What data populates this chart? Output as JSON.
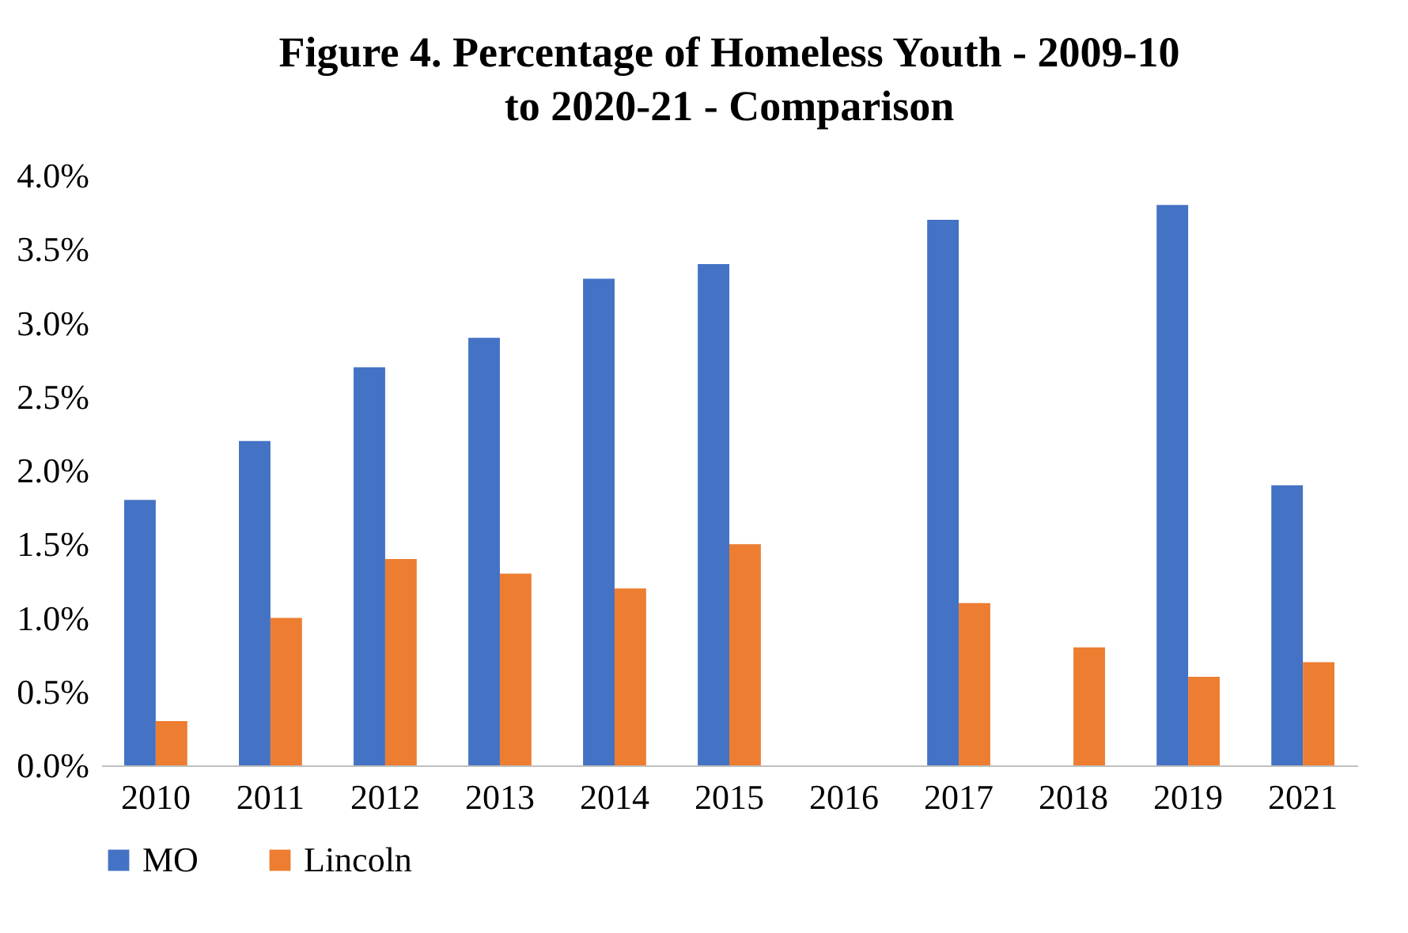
{
  "chart_data": {
    "type": "bar",
    "title": "Figure 4. Percentage of Homeless Youth - 2009-10 to 2020-21 - Comparison",
    "categories": [
      "2010",
      "2011",
      "2012",
      "2013",
      "2014",
      "2015",
      "2016",
      "2017",
      "2018",
      "2019",
      "2021"
    ],
    "series": [
      {
        "name": "MO",
        "color": "#4472c4",
        "values": [
          1.8,
          2.2,
          2.7,
          2.9,
          3.3,
          3.4,
          null,
          3.7,
          null,
          3.8,
          1.9
        ]
      },
      {
        "name": "Lincoln",
        "color": "#ed7d31",
        "values": [
          0.3,
          1.0,
          1.4,
          1.3,
          1.2,
          1.5,
          null,
          1.1,
          0.8,
          0.6,
          0.7
        ]
      }
    ],
    "ylim": [
      0,
      4
    ],
    "yticks": [
      {
        "value": 0,
        "label": "0.0%"
      },
      {
        "value": 0.5,
        "label": "0.5%"
      },
      {
        "value": 1,
        "label": "1.0%"
      },
      {
        "value": 1.5,
        "label": "1.5%"
      },
      {
        "value": 2,
        "label": "2.0%"
      },
      {
        "value": 2.5,
        "label": "2.5%"
      },
      {
        "value": 3,
        "label": "3.0%"
      },
      {
        "value": 3.5,
        "label": "3.5%"
      },
      {
        "value": 4,
        "label": "4.0%"
      }
    ],
    "grid": false,
    "legend": "bottom"
  }
}
